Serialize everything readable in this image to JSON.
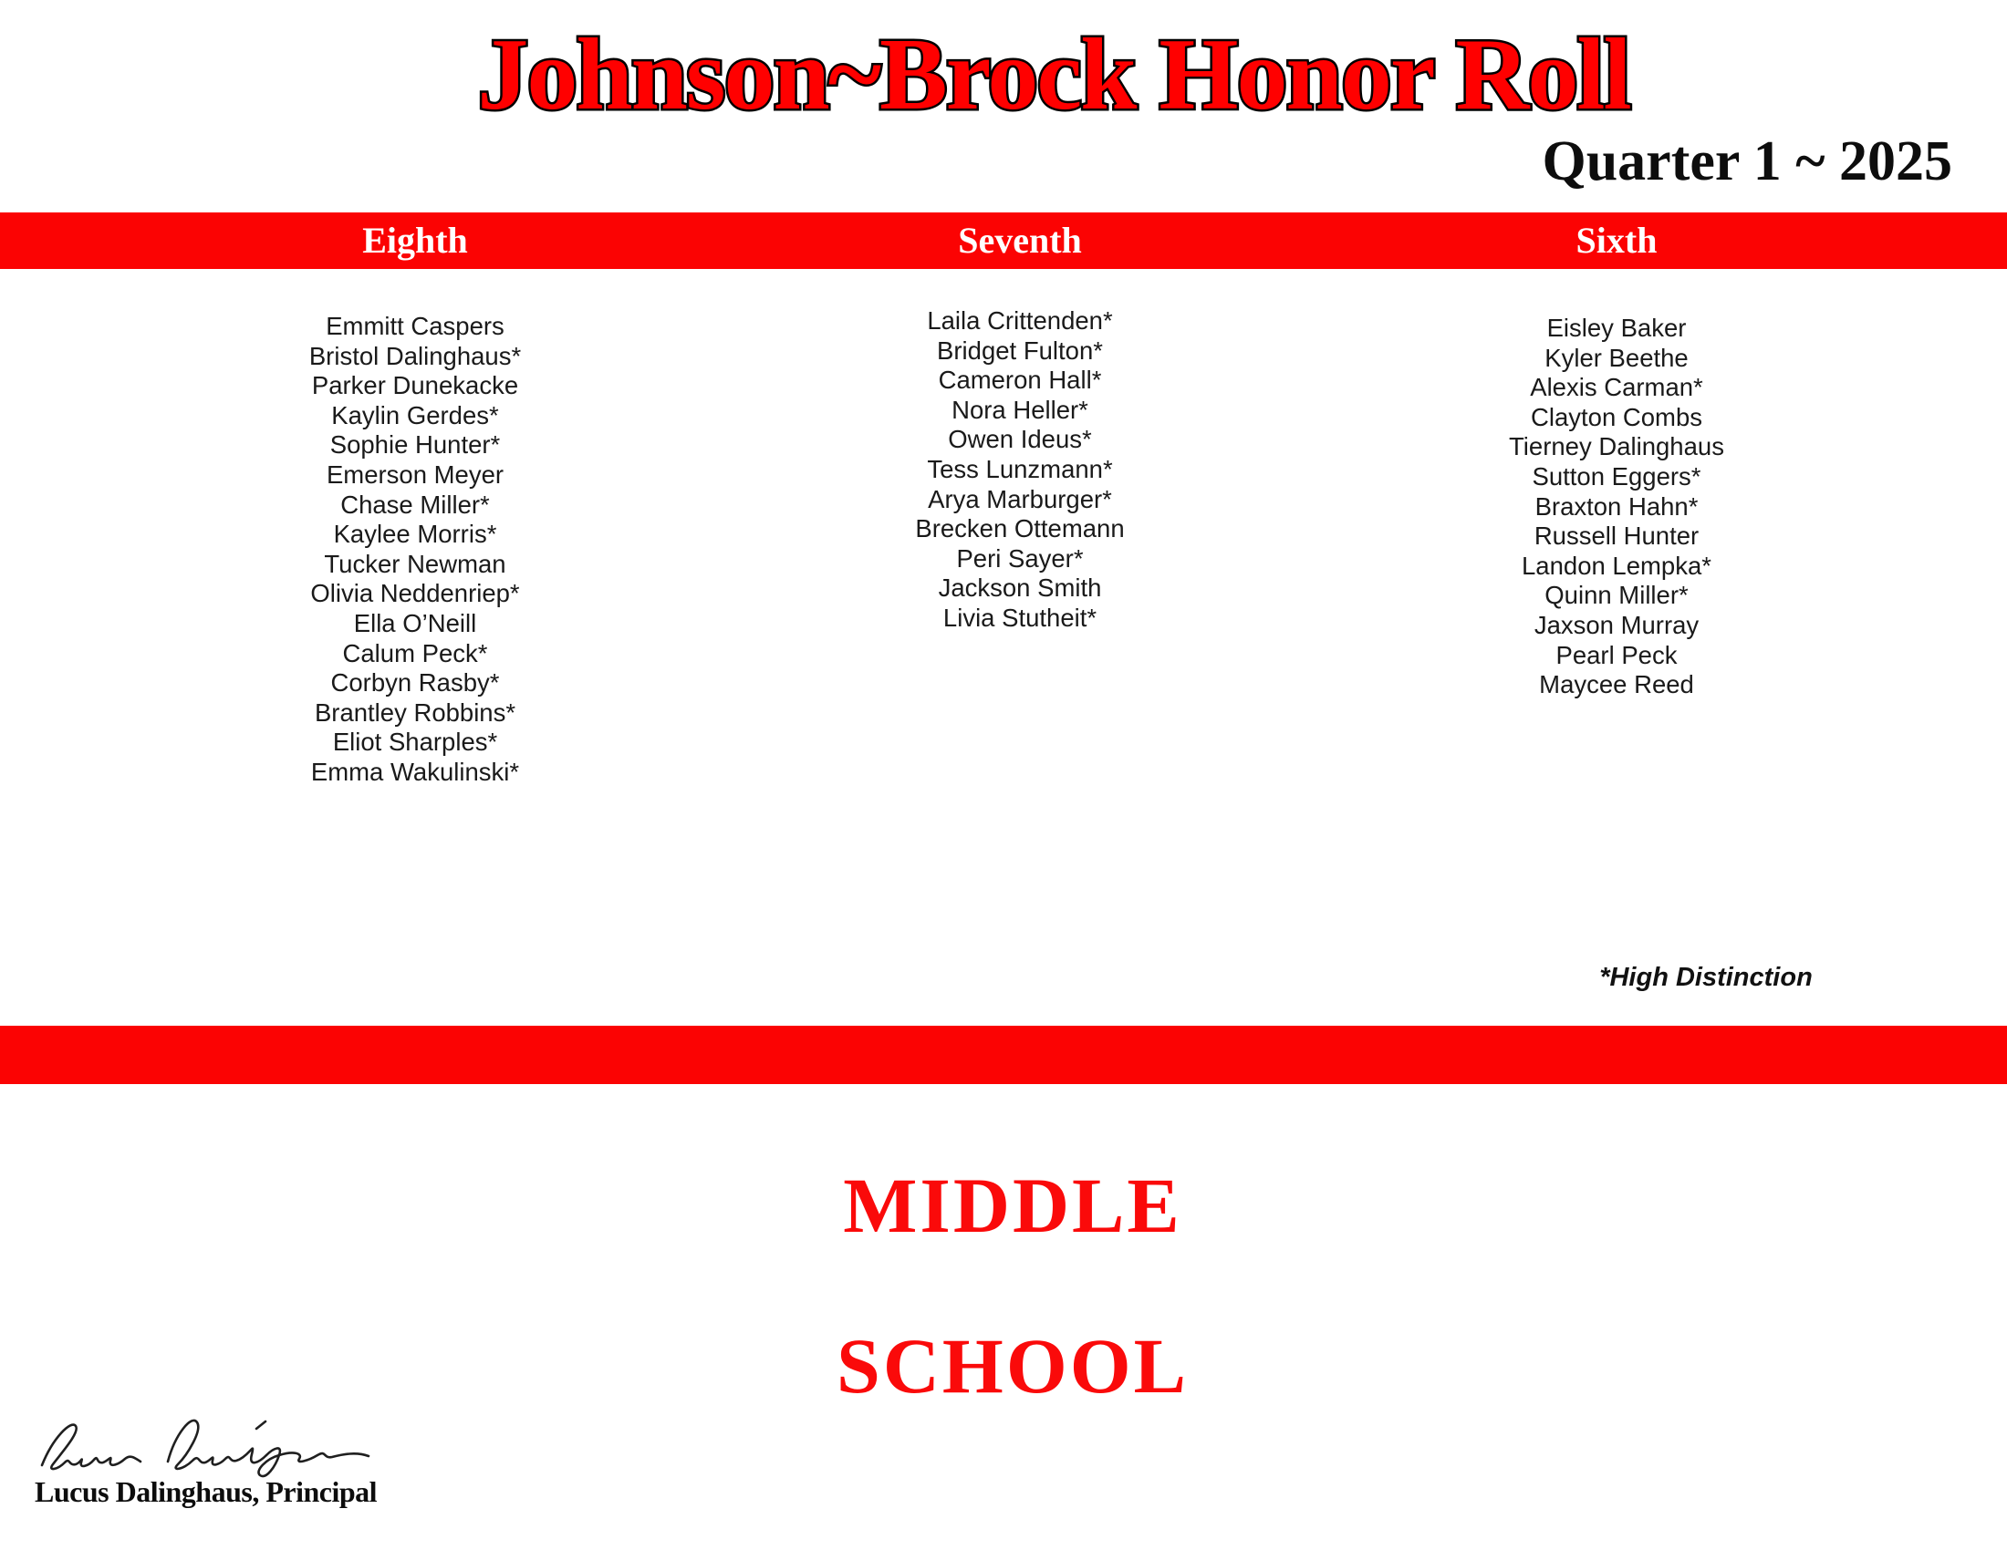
{
  "page": {
    "title": "Johnson~Brock Honor Roll",
    "subtitle": "Quarter 1 ~ 2025",
    "note": "*High Distinction",
    "footer_line1": "MIDDLE",
    "footer_line2": "SCHOOL",
    "principal": "Lucus Dalinghaus, Principal",
    "signature_icon": "handwritten-signature"
  },
  "colors": {
    "accent_red": "#FB0303",
    "title_red": "#FF0000",
    "title_outline": "#000000",
    "header_text": "#FFFFFF",
    "body_text": "#1A1A1A"
  },
  "columns": [
    {
      "header": "Eighth",
      "students": [
        "Emmitt Caspers",
        "Bristol Dalinghaus*",
        "Parker Dunekacke",
        "Kaylin Gerdes*",
        "Sophie Hunter*",
        "Emerson Meyer",
        "Chase Miller*",
        "Kaylee Morris*",
        "Tucker Newman",
        "Olivia Neddenriep*",
        "Ella O’Neill",
        "Calum Peck*",
        "Corbyn Rasby*",
        "Brantley Robbins*",
        "Eliot Sharples*",
        "Emma Wakulinski*"
      ]
    },
    {
      "header": "Seventh",
      "students": [
        "Laila Crittenden*",
        "Bridget Fulton*",
        "Cameron Hall*",
        "Nora Heller*",
        "Owen Ideus*",
        "Tess Lunzmann*",
        "Arya Marburger*",
        "Brecken Ottemann",
        "Peri Sayer*",
        "Jackson Smith",
        "Livia Stutheit*"
      ]
    },
    {
      "header": "Sixth",
      "students": [
        "Eisley Baker",
        "Kyler Beethe",
        "Alexis Carman*",
        "Clayton Combs",
        "Tierney Dalinghaus",
        "Sutton Eggers*",
        "Braxton Hahn*",
        "Russell Hunter",
        "Landon Lempka*",
        "Quinn Miller*",
        "Jaxson Murray",
        "Pearl Peck",
        "Maycee Reed"
      ]
    }
  ]
}
